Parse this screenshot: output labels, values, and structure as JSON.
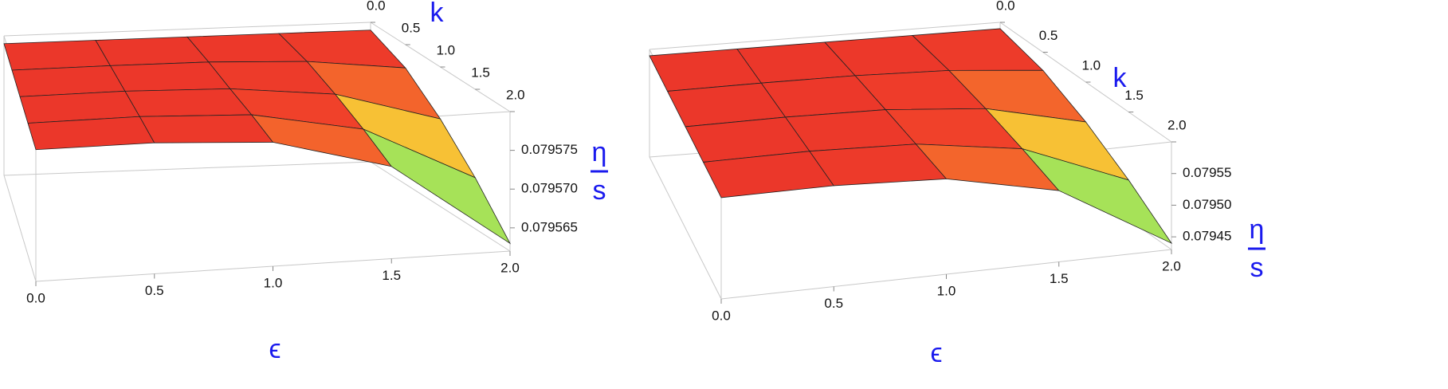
{
  "chart_data": [
    {
      "type": "surface3d",
      "xlabel": "ϵ",
      "ylabel": "k",
      "zlabel": {
        "numerator": "η",
        "denominator": "s"
      },
      "x": [
        0,
        0.5,
        1,
        1.5,
        2
      ],
      "y": [
        0,
        0.5,
        1,
        1.5,
        2
      ],
      "z": [
        [
          0.079579,
          0.079579,
          0.079579,
          0.079579,
          0.079579
        ],
        [
          0.079579,
          0.079579,
          0.079579,
          0.079579,
          0.0795789
        ],
        [
          0.079579,
          0.0795789,
          0.0795786,
          0.0795784,
          0.079578
        ],
        [
          0.079579,
          0.0795784,
          0.0795772,
          0.0795757,
          0.0795739
        ],
        [
          0.079579,
          0.079577,
          0.0795733,
          0.0795686,
          0.079563
        ]
      ],
      "xlim": [
        0,
        2
      ],
      "ylim": [
        0,
        2
      ],
      "zlim": [
        0.079562,
        0.07958
      ],
      "xticks": [
        {
          "value": 0,
          "label": "0.0"
        },
        0.5,
        {
          "value": 1,
          "label": "1.0"
        },
        1.5,
        {
          "value": 2,
          "label": "2.0"
        }
      ],
      "yticks": [
        {
          "value": 0,
          "label": "0.0"
        },
        0.5,
        {
          "value": 1,
          "label": "1.0"
        },
        1.5,
        {
          "value": 2,
          "label": "2.0"
        }
      ],
      "zticks": [
        0.079565,
        {
          "value": 0.07957,
          "label": "0.079570"
        },
        0.079575
      ],
      "colormap": [
        "#5a2ee0",
        "#3b6cf0",
        "#4fd0e0",
        "#8ee060",
        "#f6ea3c",
        "#f8a030",
        "#f0412a",
        "#e8302a"
      ]
    },
    {
      "type": "surface3d",
      "xlabel": "ϵ",
      "ylabel": "k",
      "zlabel": {
        "numerator": "η",
        "denominator": "s"
      },
      "x": [
        0,
        0.5,
        1,
        1.5,
        2
      ],
      "y": [
        0,
        0.5,
        1,
        1.5,
        2
      ],
      "z": [
        [
          0.07959,
          0.07959,
          0.07959,
          0.07959,
          0.07959
        ],
        [
          0.07959,
          0.07959,
          0.07959,
          0.07959,
          0.0795894
        ],
        [
          0.07959,
          0.0795888,
          0.0795867,
          0.0795839,
          0.0795806
        ],
        [
          0.07959,
          0.0795841,
          0.0795732,
          0.0795592,
          0.0795426
        ],
        [
          0.07959,
          0.0795713,
          0.079537,
          0.0794925,
          0.07944
        ]
      ],
      "xlim": [
        0,
        2
      ],
      "ylim": [
        0,
        2
      ],
      "zlim": [
        0.07943,
        0.0796
      ],
      "xticks": [
        {
          "value": 0,
          "label": "0.0"
        },
        0.5,
        {
          "value": 1,
          "label": "1.0"
        },
        1.5,
        {
          "value": 2,
          "label": "2.0"
        }
      ],
      "yticks": [
        {
          "value": 0,
          "label": "0.0"
        },
        0.5,
        {
          "value": 1,
          "label": "1.0"
        },
        1.5,
        {
          "value": 2,
          "label": "2.0"
        }
      ],
      "zticks": [
        0.07945,
        {
          "value": 0.0795,
          "label": "0.07950"
        },
        0.07955
      ],
      "colormap": [
        "#5a2ee0",
        "#3b6cf0",
        "#4fd0e0",
        "#8ee060",
        "#f6ea3c",
        "#f8a030",
        "#f0412a",
        "#e8302a"
      ]
    }
  ]
}
